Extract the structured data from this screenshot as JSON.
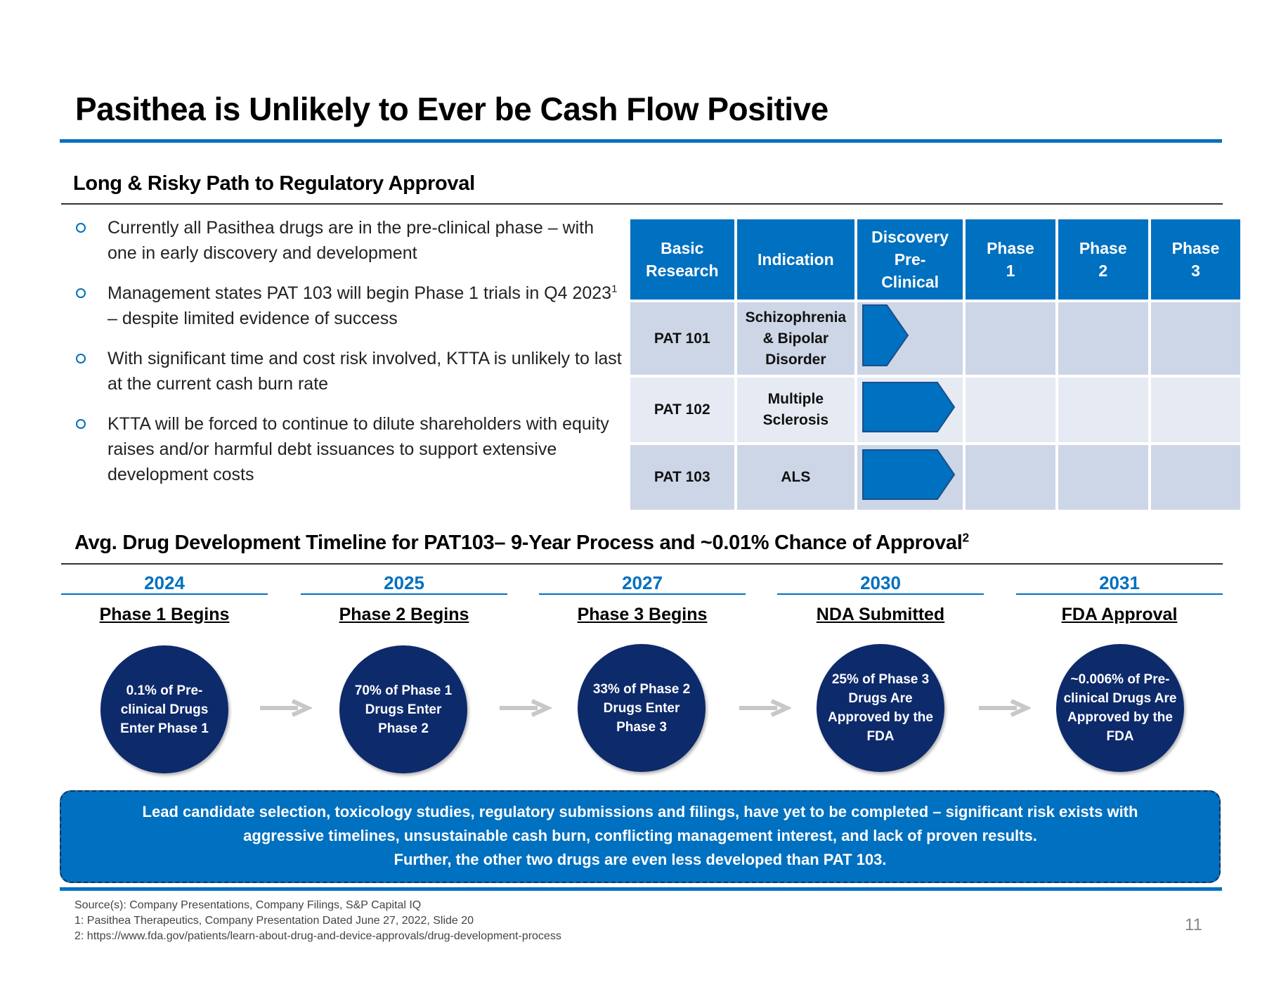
{
  "title": "Pasithea is Unlikely to Ever be Cash Flow Positive",
  "section1": {
    "heading": "Long & Risky Path to Regulatory Approval",
    "bullets": [
      {
        "text": "Currently all Pasithea drugs are in the pre-clinical phase – with one in early discovery and development"
      },
      {
        "text_a": "Management states PAT 103 will begin Phase 1 trials in Q4 2023",
        "sup": "1",
        "text_b": " – despite limited evidence of success"
      },
      {
        "text": "With significant time and cost risk involved, KTTA is unlikely to last at the current cash burn rate"
      },
      {
        "text": "KTTA will be forced to continue to dilute shareholders with equity raises and/or harmful debt issuances to support extensive development costs"
      }
    ]
  },
  "pipeline": {
    "headers": [
      "Basic Research",
      "Indication",
      "Discovery Pre-Clinical",
      "Phase 1",
      "Phase 2",
      "Phase 3"
    ],
    "rows": [
      {
        "drug": "PAT 101",
        "indication": "Schizophrenia & Bipolar Disorder",
        "progress_stage": "Discovery (early)"
      },
      {
        "drug": "PAT 102",
        "indication": "Multiple Sclerosis",
        "progress_stage": "Pre-Clinical"
      },
      {
        "drug": "PAT 103",
        "indication": "ALS",
        "progress_stage": "Pre-Clinical"
      }
    ],
    "arrow_color": "#0070c0"
  },
  "section2": {
    "heading": "Avg. Drug Development Timeline for PAT103– 9-Year Process and ~0.01% Chance of Approval",
    "heading_sup": "2",
    "steps": [
      {
        "year": "2024",
        "label": "Phase 1 Begins",
        "stat": "0.1% of Pre-clinical Drugs Enter Phase 1"
      },
      {
        "year": "2025",
        "label": "Phase 2 Begins",
        "stat": "70% of Phase 1 Drugs Enter Phase 2"
      },
      {
        "year": "2027",
        "label": "Phase 3 Begins",
        "stat": "33% of Phase 2 Drugs Enter Phase 3"
      },
      {
        "year": "2030",
        "label": "NDA Submitted",
        "stat": "25% of Phase 3 Drugs Are Approved by the FDA"
      },
      {
        "year": "2031",
        "label": "FDA Approval",
        "stat": "~0.006% of Pre-clinical Drugs Are Approved by the FDA"
      }
    ]
  },
  "callout": {
    "lines": [
      "Lead candidate selection, toxicology studies, regulatory submissions and filings, have yet to be completed – significant risk exists with",
      "aggressive timelines, unsustainable cash burn, conflicting management interest, and lack of proven results.",
      "Further, the other two drugs are even less developed than PAT 103."
    ]
  },
  "footnotes": [
    "Source(s): Company Presentations, Company Filings, S&P Capital IQ",
    "1: Pasithea Therapeutics, Company Presentation Dated June 27, 2022, Slide 20",
    "2: https://www.fda.gov/patients/learn-about-drug-and-device-approvals/drug-development-process"
  ],
  "page_number": "11",
  "colors": {
    "accent": "#0070c0",
    "navy": "#0d2a6b"
  }
}
